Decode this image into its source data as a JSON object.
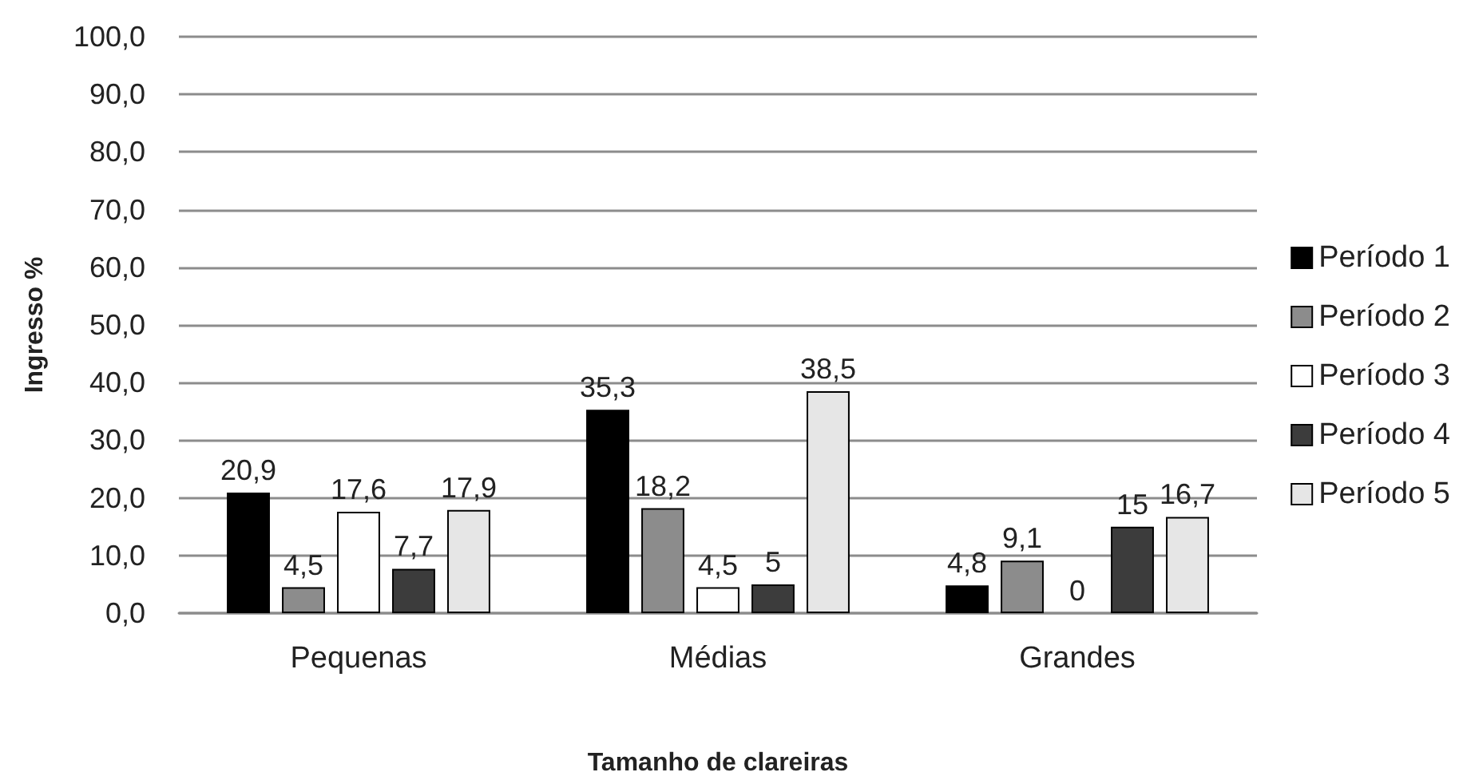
{
  "chart_data": {
    "type": "bar",
    "xlabel": "Tamanho de clareiras",
    "ylabel": "Ingresso %",
    "categories": [
      "Pequenas",
      "Médias",
      "Grandes"
    ],
    "series": [
      {
        "name": "Período 1",
        "color": "#000000",
        "values": [
          20.9,
          35.3,
          4.8
        ],
        "value_labels": [
          "20,9",
          "35,3",
          "4,8"
        ]
      },
      {
        "name": "Período 2",
        "color": "#8c8c8c",
        "values": [
          4.5,
          18.2,
          9.1
        ],
        "value_labels": [
          "4,5",
          "18,2",
          "9,1"
        ]
      },
      {
        "name": "Período 3",
        "color": "#ffffff",
        "values": [
          17.6,
          4.5,
          0
        ],
        "value_labels": [
          "17,6",
          "4,5",
          "0"
        ]
      },
      {
        "name": "Período 4",
        "color": "#3c3c3c",
        "values": [
          7.7,
          5,
          15
        ],
        "value_labels": [
          "7,7",
          "5",
          "15"
        ]
      },
      {
        "name": "Período 5",
        "color": "#e6e6e6",
        "values": [
          17.9,
          38.5,
          16.7
        ],
        "value_labels": [
          "17,9",
          "38,5",
          "16,7"
        ]
      }
    ],
    "ylim": [
      0,
      100
    ],
    "yticks": [
      {
        "value": 0,
        "label": "0,0"
      },
      {
        "value": 10,
        "label": "10,0"
      },
      {
        "value": 20,
        "label": "20,0"
      },
      {
        "value": 30,
        "label": "30,0"
      },
      {
        "value": 40,
        "label": "40,0"
      },
      {
        "value": 50,
        "label": "50,0"
      },
      {
        "value": 60,
        "label": "60,0"
      },
      {
        "value": 70,
        "label": "70,0"
      },
      {
        "value": 80,
        "label": "80,0"
      },
      {
        "value": 90,
        "label": "90,0"
      },
      {
        "value": 100,
        "label": "100,0"
      }
    ],
    "grid": "y",
    "legend": "right"
  }
}
